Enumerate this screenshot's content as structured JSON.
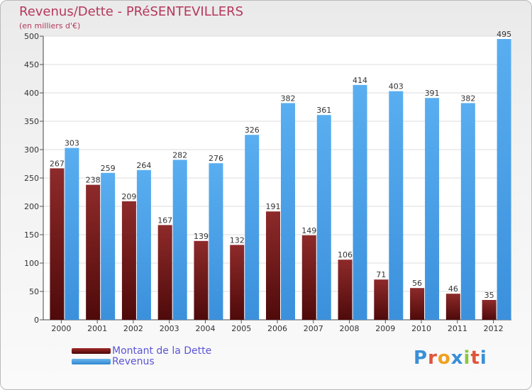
{
  "chart_data": {
    "type": "bar",
    "title": "Revenus/Dette - PRéSENTEVILLERS",
    "subtitle": "(en milliers d'€)",
    "categories": [
      "2000",
      "2001",
      "2002",
      "2003",
      "2004",
      "2005",
      "2006",
      "2007",
      "2008",
      "2009",
      "2010",
      "2011",
      "2012"
    ],
    "series": [
      {
        "name": "Montant de la Dette",
        "color": "#7b1c1c",
        "values": [
          267,
          238,
          209,
          167,
          139,
          132,
          191,
          149,
          106,
          71,
          56,
          46,
          35
        ]
      },
      {
        "name": "Revenus",
        "color": "#4da3e8",
        "values": [
          303,
          259,
          264,
          282,
          276,
          326,
          382,
          361,
          414,
          403,
          391,
          382,
          495
        ]
      }
    ],
    "ylim": [
      0,
      500
    ],
    "yticks": [
      0,
      50,
      100,
      150,
      200,
      250,
      300,
      350,
      400,
      450,
      500
    ],
    "grid": true,
    "legend": "bottom-left"
  },
  "logo": {
    "letters": [
      {
        "ch": "P",
        "color": "#3a8fd8"
      },
      {
        "ch": "r",
        "color": "#e0543a"
      },
      {
        "ch": "o",
        "color": "#f0a020"
      },
      {
        "ch": "x",
        "color": "#3a8fd8"
      },
      {
        "ch": "i",
        "color": "#8cc63f"
      },
      {
        "ch": "t",
        "color": "#e0543a"
      },
      {
        "ch": "i",
        "color": "#3a8fd8"
      }
    ]
  }
}
